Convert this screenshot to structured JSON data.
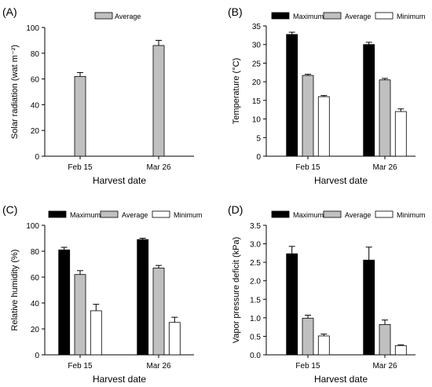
{
  "chart_data": [
    {
      "type": "bar",
      "panel_label": "(A)",
      "categories": [
        "Feb 15",
        "Mar 26"
      ],
      "series": [
        {
          "name": "Average",
          "values": [
            62,
            86
          ],
          "errors": [
            3,
            4
          ],
          "color": "#c0c0c0"
        }
      ],
      "xlabel": "Harvest date",
      "ylabel": "Solar radiation (wat m⁻²)",
      "ylim": [
        0,
        100
      ],
      "yticks": [
        0,
        20,
        40,
        60,
        80,
        100
      ],
      "ytick_labels": [
        "0",
        "20",
        "40",
        "60",
        "80",
        "100"
      ],
      "legend_position": "top-left"
    },
    {
      "type": "bar",
      "panel_label": "(B)",
      "categories": [
        "Feb 15",
        "Mar 26"
      ],
      "series": [
        {
          "name": "Maximum",
          "values": [
            32.7,
            30.0
          ],
          "errors": [
            0.6,
            0.6
          ],
          "color": "#000000"
        },
        {
          "name": "Average",
          "values": [
            21.7,
            20.5
          ],
          "errors": [
            0.3,
            0.4
          ],
          "color": "#c0c0c0"
        },
        {
          "name": "Minimum",
          "values": [
            16.0,
            12.0
          ],
          "errors": [
            0.3,
            0.7
          ],
          "color": "#ffffff"
        }
      ],
      "xlabel": "Harvest date",
      "ylabel": "Temperature (°C)",
      "ylim": [
        0,
        35
      ],
      "yticks": [
        0,
        5,
        10,
        15,
        20,
        25,
        30,
        35
      ],
      "ytick_labels": [
        "0",
        "5",
        "10",
        "15",
        "20",
        "25",
        "30",
        "35"
      ],
      "legend_position": "top"
    },
    {
      "type": "bar",
      "panel_label": "(C)",
      "categories": [
        "Feb 15",
        "Mar 26"
      ],
      "series": [
        {
          "name": "Maximum",
          "values": [
            81,
            89
          ],
          "errors": [
            2,
            1
          ],
          "color": "#000000"
        },
        {
          "name": "Average",
          "values": [
            62,
            67
          ],
          "errors": [
            3,
            2
          ],
          "color": "#c0c0c0"
        },
        {
          "name": "Minimum",
          "values": [
            34,
            25
          ],
          "errors": [
            5,
            4
          ],
          "color": "#ffffff"
        }
      ],
      "xlabel": "Harvest date",
      "ylabel": "Relative humidity (%)",
      "ylim": [
        0,
        100
      ],
      "yticks": [
        0,
        20,
        40,
        60,
        80,
        100
      ],
      "ytick_labels": [
        "0",
        "20",
        "40",
        "60",
        "80",
        "100"
      ],
      "legend_position": "top"
    },
    {
      "type": "bar",
      "panel_label": "(D)",
      "categories": [
        "Feb 15",
        "Mar 26"
      ],
      "series": [
        {
          "name": "Maximum",
          "values": [
            2.73,
            2.56
          ],
          "errors": [
            0.2,
            0.35
          ],
          "color": "#000000"
        },
        {
          "name": "Average",
          "values": [
            0.99,
            0.82
          ],
          "errors": [
            0.08,
            0.12
          ],
          "color": "#c0c0c0"
        },
        {
          "name": "Minimum",
          "values": [
            0.51,
            0.25
          ],
          "errors": [
            0.05,
            0.02
          ],
          "color": "#ffffff"
        }
      ],
      "xlabel": "Harvest date",
      "ylabel": "Vapor pressure deficit (kPa)",
      "ylim": [
        0,
        3.5
      ],
      "yticks": [
        0,
        0.5,
        1.0,
        1.5,
        2.0,
        2.5,
        3.0,
        3.5
      ],
      "ytick_labels": [
        "0.0",
        "0.5",
        "1.0",
        "1.5",
        "2.0",
        "2.5",
        "3.0",
        "3.5"
      ],
      "legend_position": "top"
    }
  ]
}
